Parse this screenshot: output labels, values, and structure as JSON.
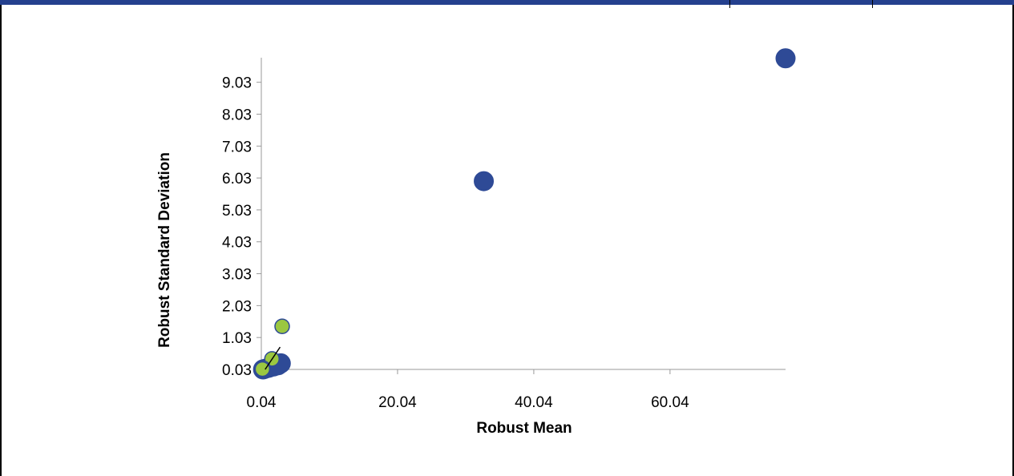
{
  "chart_data": {
    "type": "scatter",
    "title": "",
    "xlabel": "Robust Mean",
    "ylabel": "Robust Standard Deviation",
    "xlim": [
      0.04,
      77.0
    ],
    "ylim": [
      0.03,
      9.8
    ],
    "x_ticks": [
      "0.04",
      "20.04",
      "40.04",
      "60.04"
    ],
    "y_ticks": [
      "0.03",
      "1.03",
      "2.03",
      "3.03",
      "4.03",
      "5.03",
      "6.03",
      "7.03",
      "8.03",
      "9.03"
    ],
    "grid": false,
    "legend": "none",
    "colors": {
      "series_blue": "#2e4a96",
      "series_green": "#9bc741",
      "marker_edge": "#2e4a96",
      "trend_line": "#000000",
      "frame_accent": "#24408e"
    },
    "series": [
      {
        "marker": "large-circle",
        "points": [
          {
            "x": 32.7,
            "y": 5.93
          },
          {
            "x": 77.0,
            "y": 9.78
          },
          {
            "x": 0.3,
            "y": 0.03
          },
          {
            "x": 0.6,
            "y": 0.05
          },
          {
            "x": 1.1,
            "y": 0.08
          },
          {
            "x": 1.8,
            "y": 0.12
          },
          {
            "x": 2.5,
            "y": 0.16
          },
          {
            "x": 2.9,
            "y": 0.22
          }
        ]
      },
      {
        "marker": "small-circle",
        "points": [
          {
            "x": 3.1,
            "y": 1.38
          },
          {
            "x": 1.6,
            "y": 0.36
          },
          {
            "x": 0.3,
            "y": 0.07
          },
          {
            "x": 0.2,
            "y": 0.04
          }
        ]
      }
    ],
    "trend_line": {
      "x": [
        0.6,
        2.8
      ],
      "y": [
        0.03,
        0.73
      ]
    }
  }
}
